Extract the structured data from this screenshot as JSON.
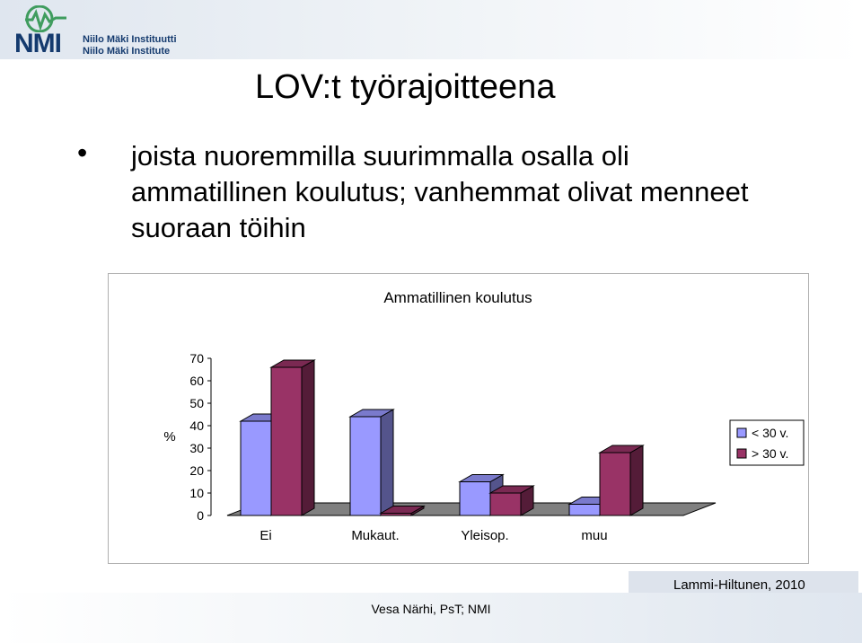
{
  "header": {
    "logo_abbr": "NMI",
    "logo_line1": "Niilo Mäki Instituutti",
    "logo_line2": "Niilo Mäki Institute"
  },
  "slide": {
    "title": "LOV:t työrajoitteena",
    "bullet_symbol": "•",
    "bullet_text": "joista nuoremmilla suurimmalla osalla oli ammatillinen koulutus; vanhemmat olivat menneet suoraan töihin"
  },
  "chart_data": {
    "type": "bar",
    "title": "Ammatillinen koulutus",
    "ylabel": "%",
    "xlabel": "",
    "ylim": [
      0,
      70
    ],
    "yticks": [
      0,
      10,
      20,
      30,
      40,
      50,
      60,
      70
    ],
    "categories": [
      "Ei",
      "Mukaut.",
      "Yleisop.",
      "muu"
    ],
    "series": [
      {
        "name": "< 30 v.",
        "values": [
          42,
          44,
          15,
          5
        ],
        "color": "#9999ff"
      },
      {
        "name": "> 30 v.",
        "values": [
          66,
          1,
          10,
          28
        ],
        "color": "#993366"
      }
    ],
    "legend_position": "right",
    "grid": false,
    "style": "3d-clustered-column"
  },
  "footer": {
    "source": "Lammi-Hiltunen, 2010",
    "author": "Vesa Närhi, PsT; NMI"
  }
}
